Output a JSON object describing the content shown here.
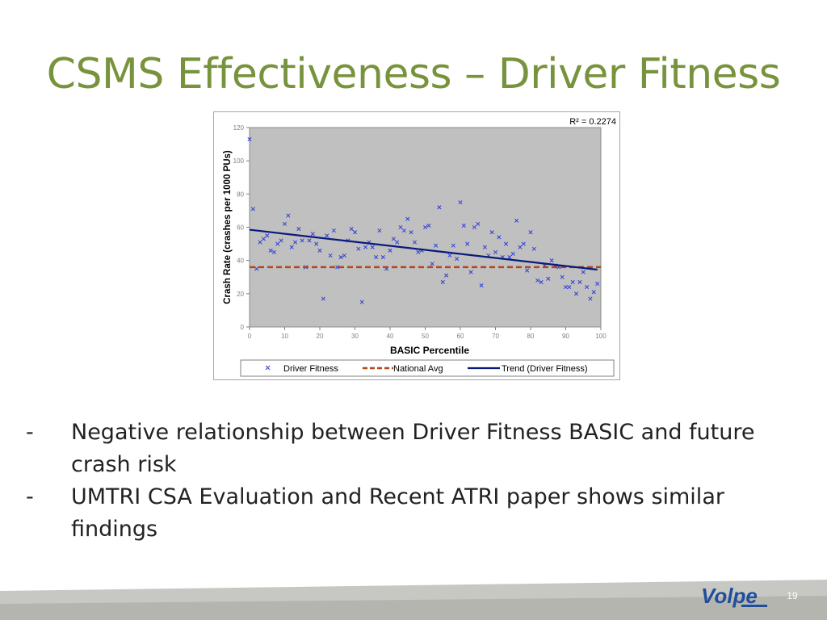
{
  "slide": {
    "title": "CSMS Effectiveness – Driver Fitness",
    "page_number": "19",
    "logo_text": "Volpe"
  },
  "bullets": [
    {
      "dash": "-",
      "text": "Negative relationship between Driver Fitness BASIC and future crash risk"
    },
    {
      "dash": "-",
      "text": "UMTRI CSA Evaluation and Recent ATRI paper shows similar findings"
    }
  ],
  "colors": {
    "title": "#77933c",
    "plot_bg": "#c0c0c0",
    "points": "#2f3fd8",
    "national_avg": "#b5461a",
    "trend": "#0a1a7a"
  },
  "chart_data": {
    "type": "scatter",
    "title": "",
    "xlabel": "BASIC Percentile",
    "ylabel": "Crash Rate (crashes per 1000 PUs)",
    "xlim": [
      0,
      100
    ],
    "ylim": [
      0,
      120
    ],
    "xticks": [
      0,
      10,
      20,
      30,
      40,
      50,
      60,
      70,
      80,
      90,
      100
    ],
    "yticks": [
      0,
      20,
      40,
      60,
      80,
      100,
      120
    ],
    "r_squared_label": "R² = 0.2274",
    "legend": [
      "Driver Fitness",
      "National Avg",
      "Trend (Driver Fitness)"
    ],
    "series": [
      {
        "name": "Driver Fitness",
        "marker": "x",
        "points": [
          [
            0,
            113
          ],
          [
            1,
            71
          ],
          [
            2,
            35
          ],
          [
            3,
            51
          ],
          [
            4,
            53
          ],
          [
            5,
            55
          ],
          [
            6,
            46
          ],
          [
            7,
            45
          ],
          [
            8,
            50
          ],
          [
            9,
            52
          ],
          [
            10,
            62
          ],
          [
            11,
            67
          ],
          [
            12,
            48
          ],
          [
            13,
            51
          ],
          [
            14,
            59
          ],
          [
            15,
            52
          ],
          [
            16,
            36
          ],
          [
            17,
            52
          ],
          [
            18,
            56
          ],
          [
            19,
            50
          ],
          [
            20,
            46
          ],
          [
            21,
            17
          ],
          [
            22,
            55
          ],
          [
            23,
            43
          ],
          [
            24,
            58
          ],
          [
            25,
            36
          ],
          [
            26,
            42
          ],
          [
            27,
            43
          ],
          [
            28,
            52
          ],
          [
            29,
            59
          ],
          [
            30,
            57
          ],
          [
            31,
            47
          ],
          [
            32,
            15
          ],
          [
            33,
            48
          ],
          [
            34,
            51
          ],
          [
            35,
            48
          ],
          [
            36,
            42
          ],
          [
            37,
            58
          ],
          [
            38,
            42
          ],
          [
            39,
            35
          ],
          [
            40,
            46
          ],
          [
            41,
            53
          ],
          [
            42,
            51
          ],
          [
            43,
            60
          ],
          [
            44,
            58
          ],
          [
            45,
            65
          ],
          [
            46,
            57
          ],
          [
            47,
            51
          ],
          [
            48,
            45
          ],
          [
            49,
            46
          ],
          [
            50,
            60
          ],
          [
            51,
            61
          ],
          [
            52,
            38
          ],
          [
            53,
            49
          ],
          [
            54,
            72
          ],
          [
            55,
            27
          ],
          [
            56,
            31
          ],
          [
            57,
            43
          ],
          [
            58,
            49
          ],
          [
            59,
            41
          ],
          [
            60,
            75
          ],
          [
            61,
            61
          ],
          [
            62,
            50
          ],
          [
            63,
            33
          ],
          [
            64,
            60
          ],
          [
            65,
            62
          ],
          [
            66,
            25
          ],
          [
            67,
            48
          ],
          [
            68,
            43
          ],
          [
            69,
            57
          ],
          [
            70,
            45
          ],
          [
            71,
            54
          ],
          [
            72,
            42
          ],
          [
            73,
            50
          ],
          [
            74,
            42
          ],
          [
            75,
            44
          ],
          [
            76,
            64
          ],
          [
            77,
            48
          ],
          [
            78,
            50
          ],
          [
            79,
            34
          ],
          [
            80,
            57
          ],
          [
            81,
            47
          ],
          [
            82,
            28
          ],
          [
            83,
            27
          ],
          [
            84,
            37
          ],
          [
            85,
            29
          ],
          [
            86,
            40
          ],
          [
            87,
            37
          ],
          [
            88,
            36
          ],
          [
            89,
            30
          ],
          [
            90,
            24
          ],
          [
            91,
            24
          ],
          [
            92,
            27
          ],
          [
            93,
            20
          ],
          [
            94,
            27
          ],
          [
            95,
            33
          ],
          [
            96,
            24
          ],
          [
            97,
            17
          ],
          [
            98,
            21
          ],
          [
            99,
            26
          ]
        ]
      },
      {
        "name": "National Avg",
        "type": "line",
        "y": 36
      },
      {
        "name": "Trend (Driver Fitness)",
        "type": "line",
        "x": [
          0,
          99
        ],
        "y": [
          58.5,
          34.5
        ]
      }
    ],
    "grid": false,
    "legend_position": "bottom"
  }
}
